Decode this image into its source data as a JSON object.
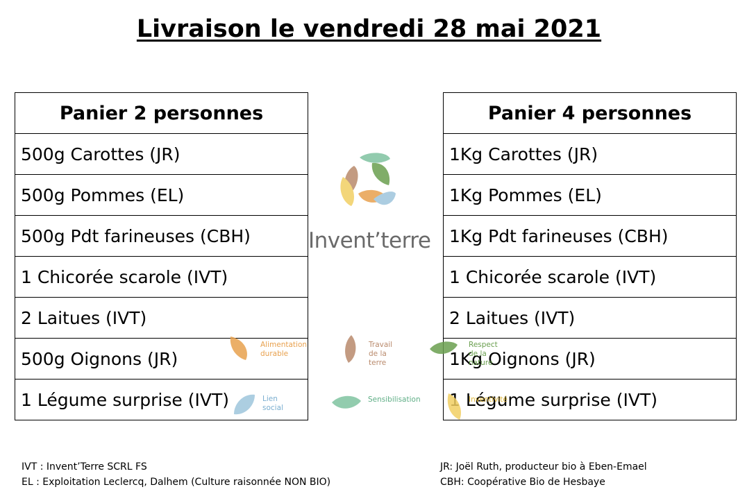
{
  "title": "Livraison le vendredi 28 mai 2021",
  "basket_left": {
    "header": "Panier 2 personnes",
    "items": [
      "500g Carottes (JR)",
      "500g Pommes (EL)",
      "500g Pdt farineuses (CBH)",
      "1 Chicorée scarole (IVT)",
      "2 Laitues (IVT)",
      "500g Oignons (JR)",
      "1 Légume surprise (IVT)"
    ]
  },
  "basket_right": {
    "header": "Panier 4 personnes",
    "items": [
      "1Kg Carottes (JR)",
      "1Kg Pommes (EL)",
      "1Kg Pdt farineuses (CBH)",
      "1 Chicorée scarole (IVT)",
      "2 Laitues (IVT)",
      "1Kg Oignons (JR)",
      "1 Légume surprise (IVT)"
    ]
  },
  "logo": {
    "brand": "Invent’terre",
    "colors": {
      "orange": "#e8a14e",
      "brown": "#b98a6c",
      "green": "#6a9f4f",
      "teal": "#7fc3a0",
      "blue": "#9ec5dc",
      "yellow": "#f1cf63"
    },
    "values": [
      {
        "label": "Alimentation\ndurable",
        "color": "#e8a14e"
      },
      {
        "label": "Travail\nde la terre",
        "color": "#b98a6c"
      },
      {
        "label": "Respect\nde la nature",
        "color": "#6a9f4f"
      },
      {
        "label": "Lien\nsocial",
        "color": "#9ec5dc"
      },
      {
        "label": "Sensibilisation",
        "color": "#7fc3a0"
      },
      {
        "label": "Inventivité",
        "color": "#f1cf63"
      }
    ]
  },
  "footer": {
    "left": [
      "IVT : Invent’Terre SCRL FS",
      "EL : Exploitation Leclercq, Dalhem (Culture raisonnée NON BIO)"
    ],
    "right": [
      "JR: Joël Ruth, producteur bio à Eben-Emael",
      "CBH: Coopérative Bio de Hesbaye"
    ]
  }
}
